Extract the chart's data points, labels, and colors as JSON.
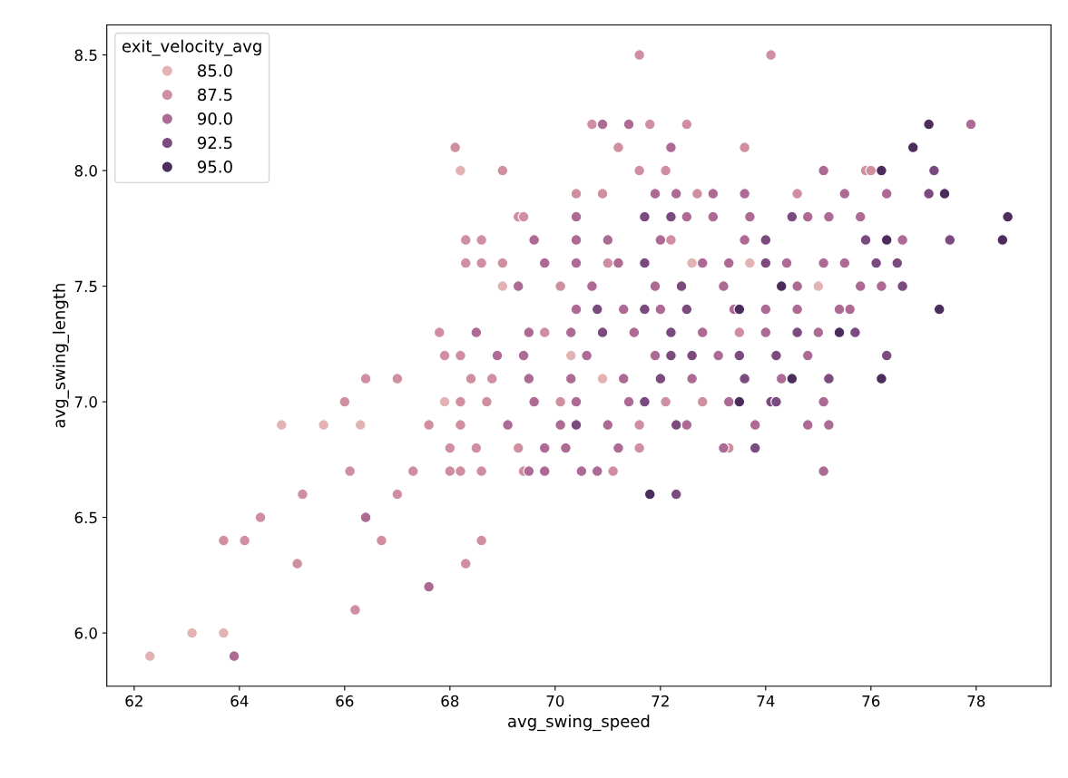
{
  "chart_data": {
    "type": "scatter",
    "xlabel": "avg_swing_speed",
    "ylabel": "avg_swing_length",
    "legend_title": "exit_velocity_avg",
    "legend": "top left",
    "grid": false,
    "marker": "circle",
    "xlim": [
      61.48,
      79.42
    ],
    "ylim": [
      5.77,
      8.63
    ],
    "xticks": [
      62,
      64,
      66,
      68,
      70,
      72,
      74,
      76,
      78
    ],
    "yticks": [
      {
        "value": 6.0,
        "label": "6.0"
      },
      {
        "value": 6.5,
        "label": "6.5"
      },
      {
        "value": 7.0,
        "label": "7.0"
      },
      {
        "value": 7.5,
        "label": "7.5"
      },
      {
        "value": 8.0,
        "label": "8.0"
      },
      {
        "value": 8.5,
        "label": "8.5"
      }
    ],
    "series": [
      {
        "name": "85.0",
        "color": "#e3b3b3",
        "x": [
          62.3,
          63.1,
          63.7,
          64.8,
          65.6,
          66.3,
          68.2,
          69.0,
          75.0,
          67.9,
          70.3,
          72.6,
          73.7,
          70.9
        ],
        "values": [
          5.9,
          6.0,
          6.0,
          6.9,
          6.9,
          6.9,
          8.0,
          7.5,
          7.5,
          7.0,
          7.2,
          7.6,
          7.6,
          7.1
        ]
      },
      {
        "name": "87.5",
        "color": "#d08fa0",
        "x": [
          63.7,
          64.1,
          64.4,
          65.1,
          65.2,
          66.2,
          66.7,
          67.0,
          68.3,
          68.6,
          66.1,
          67.3,
          66.0,
          66.4,
          67.0,
          71.6,
          74.1,
          68.1,
          69.0,
          70.7,
          71.8,
          72.5,
          71.2,
          73.6,
          72.1,
          71.6,
          70.9,
          70.4,
          72.7,
          75.9,
          76.0,
          74.6,
          73.3,
          71.1,
          69.4,
          68.6,
          68.0,
          68.2,
          68.3,
          68.6,
          69.3,
          69.4,
          68.3,
          68.6,
          69.0,
          67.8,
          67.9,
          68.2,
          68.4,
          68.8,
          68.2,
          68.7,
          67.6,
          68.2,
          68.0,
          68.5,
          69.3,
          70.1,
          72.2,
          71.0,
          73.5,
          72.8,
          71.6,
          71.6,
          72.1,
          70.1,
          69.8
        ],
        "values": [
          6.4,
          6.4,
          6.5,
          6.3,
          6.6,
          6.1,
          6.4,
          6.6,
          6.3,
          6.4,
          6.7,
          6.7,
          7.0,
          7.1,
          7.1,
          8.5,
          8.5,
          8.1,
          8.0,
          8.2,
          8.2,
          8.2,
          8.1,
          8.1,
          8.0,
          8.0,
          7.9,
          7.9,
          7.9,
          8.0,
          8.0,
          7.9,
          6.8,
          6.7,
          6.7,
          6.7,
          6.7,
          6.7,
          7.7,
          7.7,
          7.8,
          7.8,
          7.6,
          7.6,
          7.6,
          7.3,
          7.2,
          7.2,
          7.1,
          7.1,
          7.0,
          7.0,
          6.9,
          6.9,
          6.8,
          6.8,
          6.8,
          7.5,
          7.7,
          7.6,
          7.3,
          7.0,
          6.9,
          6.8,
          7.0,
          7.0,
          7.3
        ]
      },
      {
        "name": "90.0",
        "color": "#ad6a94",
        "x": [
          63.9,
          66.4,
          67.6,
          70.9,
          71.4,
          72.2,
          71.9,
          77.9,
          75.1,
          76.3,
          75.5,
          76.6,
          75.8,
          75.2,
          76.2,
          75.8,
          75.6,
          75.1,
          75.2,
          75.1,
          74.8,
          74.3,
          73.8,
          73.2,
          70.8,
          70.5,
          69.8,
          69.5,
          69.6,
          70.4,
          71.0,
          72.0,
          73.6,
          70.4,
          72.5,
          73.0,
          73.7,
          74.8,
          72.3,
          73.0,
          73.6,
          69.8,
          70.4,
          71.2,
          72.8,
          73.3,
          74.4,
          75.1,
          75.5,
          69.3,
          70.7,
          71.9,
          73.2,
          74.6,
          70.4,
          71.3,
          72.0,
          73.4,
          74.0,
          74.6,
          75.4,
          68.5,
          69.5,
          70.3,
          71.5,
          72.8,
          74.0,
          75.0,
          68.9,
          69.4,
          70.6,
          71.9,
          73.1,
          69.5,
          70.3,
          71.3,
          72.6,
          69.6,
          70.4,
          71.4,
          73.3,
          69.1,
          70.1,
          71.0,
          72.5,
          74.8,
          69.8,
          70.2,
          71.2
        ],
        "values": [
          5.9,
          6.5,
          6.2,
          8.2,
          8.2,
          8.1,
          7.9,
          8.2,
          8.0,
          7.9,
          7.9,
          7.7,
          7.8,
          7.8,
          7.5,
          7.5,
          7.4,
          6.7,
          6.9,
          7.0,
          7.2,
          7.1,
          6.9,
          6.8,
          6.7,
          6.7,
          6.7,
          6.7,
          7.7,
          7.7,
          7.7,
          7.7,
          7.7,
          7.8,
          7.8,
          7.8,
          7.8,
          7.8,
          7.9,
          7.9,
          7.9,
          7.6,
          7.6,
          7.6,
          7.6,
          7.6,
          7.6,
          7.6,
          7.6,
          7.5,
          7.5,
          7.5,
          7.5,
          7.5,
          7.4,
          7.4,
          7.4,
          7.4,
          7.4,
          7.4,
          7.4,
          7.3,
          7.3,
          7.3,
          7.3,
          7.3,
          7.3,
          7.3,
          7.2,
          7.2,
          7.2,
          7.2,
          7.2,
          7.1,
          7.1,
          7.1,
          7.1,
          7.0,
          7.0,
          7.0,
          7.0,
          6.9,
          6.9,
          6.9,
          6.9,
          6.9,
          6.8,
          6.8,
          6.8
        ]
      },
      {
        "name": "92.5",
        "color": "#7b4a7f",
        "x": [
          77.2,
          77.1,
          77.5,
          75.9,
          76.1,
          76.5,
          76.6,
          75.7,
          76.3,
          75.2,
          74.2,
          74.1,
          73.8,
          72.3,
          71.7,
          74.0,
          74.0,
          74.5,
          72.2,
          71.7,
          72.4,
          74.6,
          72.5,
          71.7,
          70.8,
          72.2,
          72.6,
          73.5,
          74.2,
          73.6,
          72.0,
          71.7,
          72.3,
          70.4,
          70.9,
          72.2
        ],
        "values": [
          8.0,
          7.9,
          7.7,
          7.7,
          7.6,
          7.6,
          7.5,
          7.3,
          7.2,
          7.1,
          7.2,
          7.0,
          6.8,
          6.6,
          7.6,
          7.6,
          7.7,
          7.8,
          7.8,
          7.8,
          7.5,
          7.3,
          7.4,
          7.4,
          7.4,
          7.3,
          7.2,
          7.2,
          7.0,
          7.1,
          7.1,
          7.0,
          6.9,
          6.9,
          7.3,
          7.2
        ]
      },
      {
        "name": "95.0",
        "color": "#4b2c5c",
        "x": [
          77.1,
          76.8,
          76.2,
          77.4,
          78.6,
          78.5,
          76.3,
          77.3,
          75.4,
          76.2,
          74.5,
          73.5,
          71.8,
          74.3,
          73.5
        ],
        "values": [
          8.2,
          8.1,
          8.0,
          7.9,
          7.8,
          7.7,
          7.7,
          7.4,
          7.3,
          7.1,
          7.1,
          7.0,
          6.6,
          7.5,
          7.4
        ]
      }
    ]
  }
}
